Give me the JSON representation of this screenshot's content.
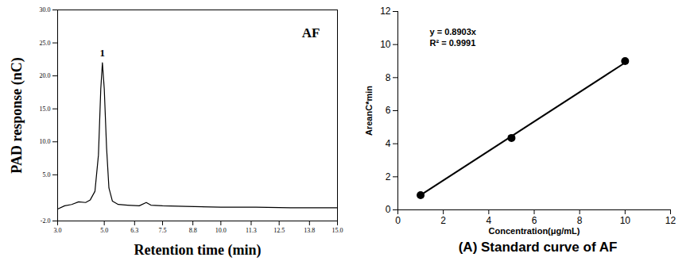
{
  "chart_data": [
    {
      "type": "line",
      "x_label": "Retention time (min)",
      "y_label": "PAD response (nC)",
      "annotations": [
        "AF",
        "1"
      ],
      "x": [
        3.0,
        3.3,
        3.6,
        3.9,
        4.2,
        4.4,
        4.6,
        4.75,
        4.85,
        4.92,
        5.0,
        5.1,
        5.2,
        5.35,
        5.6,
        6.0,
        6.5,
        6.8,
        7.0,
        7.5,
        8.5,
        10.0,
        11.5,
        13.0,
        15.0
      ],
      "values": [
        -0.2,
        0.3,
        0.5,
        0.9,
        0.8,
        1.2,
        2.5,
        8.0,
        18.0,
        22.0,
        18.0,
        9.0,
        3.0,
        1.0,
        0.5,
        0.4,
        0.3,
        0.8,
        0.4,
        0.3,
        0.2,
        0.1,
        0.1,
        0.0,
        0.0
      ],
      "color": "#000000",
      "xlim": [
        3.0,
        15.0
      ],
      "xticks": [
        {
          "value": 3,
          "label": "3.0"
        },
        {
          "value": 5,
          "label": "5.0"
        },
        6.3,
        7.5,
        8.8,
        {
          "value": 10,
          "label": "10.0"
        },
        11.3,
        12.5,
        13.8,
        {
          "value": 15,
          "label": "15.0"
        }
      ],
      "ylim": [
        -2,
        30
      ],
      "yticks": [
        {
          "value": -2,
          "label": "-2.0"
        },
        {
          "value": 5,
          "label": "5.0"
        },
        {
          "value": 10,
          "label": "10.0"
        },
        {
          "value": 15,
          "label": "15.0"
        },
        {
          "value": 20,
          "label": "20.0"
        },
        {
          "value": 25,
          "label": "25.0"
        },
        {
          "value": 30,
          "label": "30.0"
        }
      ]
    },
    {
      "type": "scatter",
      "title": "(A) Standard curve of AF",
      "x_label": "Concentration(μg/mL)",
      "y_label": "AreanC*min",
      "annotations": [
        "y = 0.8903x",
        "R² = 0.9991"
      ],
      "x": [
        1,
        5,
        10
      ],
      "values": [
        0.89,
        4.35,
        9.0
      ],
      "fit_slope": 0.8903,
      "fit_x": [
        1,
        10
      ],
      "color": "#000000",
      "marker": "circle",
      "xlim": [
        0,
        12
      ],
      "xticks": [
        0,
        2,
        4,
        6,
        8,
        10,
        12
      ],
      "ylim": [
        0,
        12
      ],
      "yticks": [
        0,
        2,
        4,
        6,
        8,
        10,
        12
      ]
    }
  ]
}
